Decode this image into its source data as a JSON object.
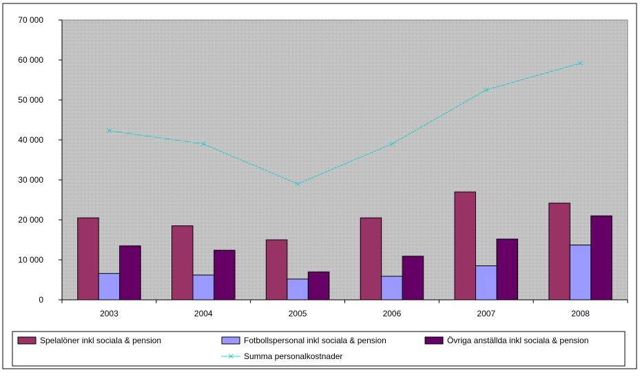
{
  "chart_data": {
    "type": "bar",
    "categories": [
      "2003",
      "2004",
      "2005",
      "2006",
      "2007",
      "2008"
    ],
    "y_ticks": [
      "0",
      "10 000",
      "20 000",
      "30 000",
      "40 000",
      "50 000",
      "60 000",
      "70 000"
    ],
    "ylim": [
      0,
      70000
    ],
    "series": [
      {
        "name": "Spelalöner inkl sociala & pension",
        "kind": "bar",
        "color": "#993366",
        "values": [
          20500,
          18500,
          15000,
          20500,
          27000,
          24200
        ]
      },
      {
        "name": "Fotbollspersonal inkl sociala & pension",
        "kind": "bar",
        "color": "#9999ff",
        "values": [
          6600,
          6200,
          5200,
          5900,
          8500,
          13700
        ]
      },
      {
        "name": "Övriga anställda inkl sociala & pension",
        "kind": "bar",
        "color": "#660066",
        "values": [
          13500,
          12400,
          7000,
          10900,
          15200,
          21000
        ]
      },
      {
        "name": "Summa personalkostnader",
        "kind": "line",
        "color": "#33cccc",
        "values": [
          42300,
          39000,
          29000,
          39000,
          52500,
          59200
        ]
      }
    ],
    "grid": false,
    "plot_background": "#c0c0c0",
    "legend_position": "bottom"
  }
}
